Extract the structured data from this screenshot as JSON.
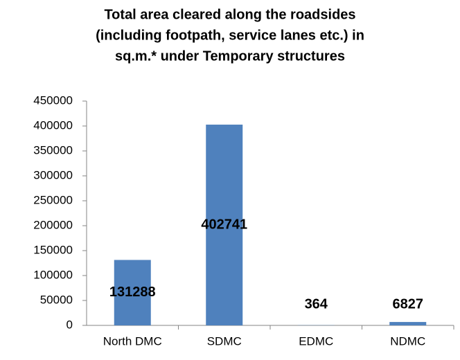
{
  "chart_data": {
    "type": "bar",
    "title": [
      "Total area cleared along the roadsides",
      "(including footpath, service lanes etc.) in",
      "sq.m.* under Temporary structures"
    ],
    "categories": [
      "North DMC",
      "SDMC",
      "EDMC",
      "NDMC"
    ],
    "values": [
      131288,
      402741,
      364,
      6827
    ],
    "color": "#4f81bd",
    "ylim": [
      0,
      450000
    ],
    "yticks": [
      0,
      50000,
      100000,
      150000,
      200000,
      250000,
      300000,
      350000,
      400000,
      450000
    ],
    "grid": false
  }
}
